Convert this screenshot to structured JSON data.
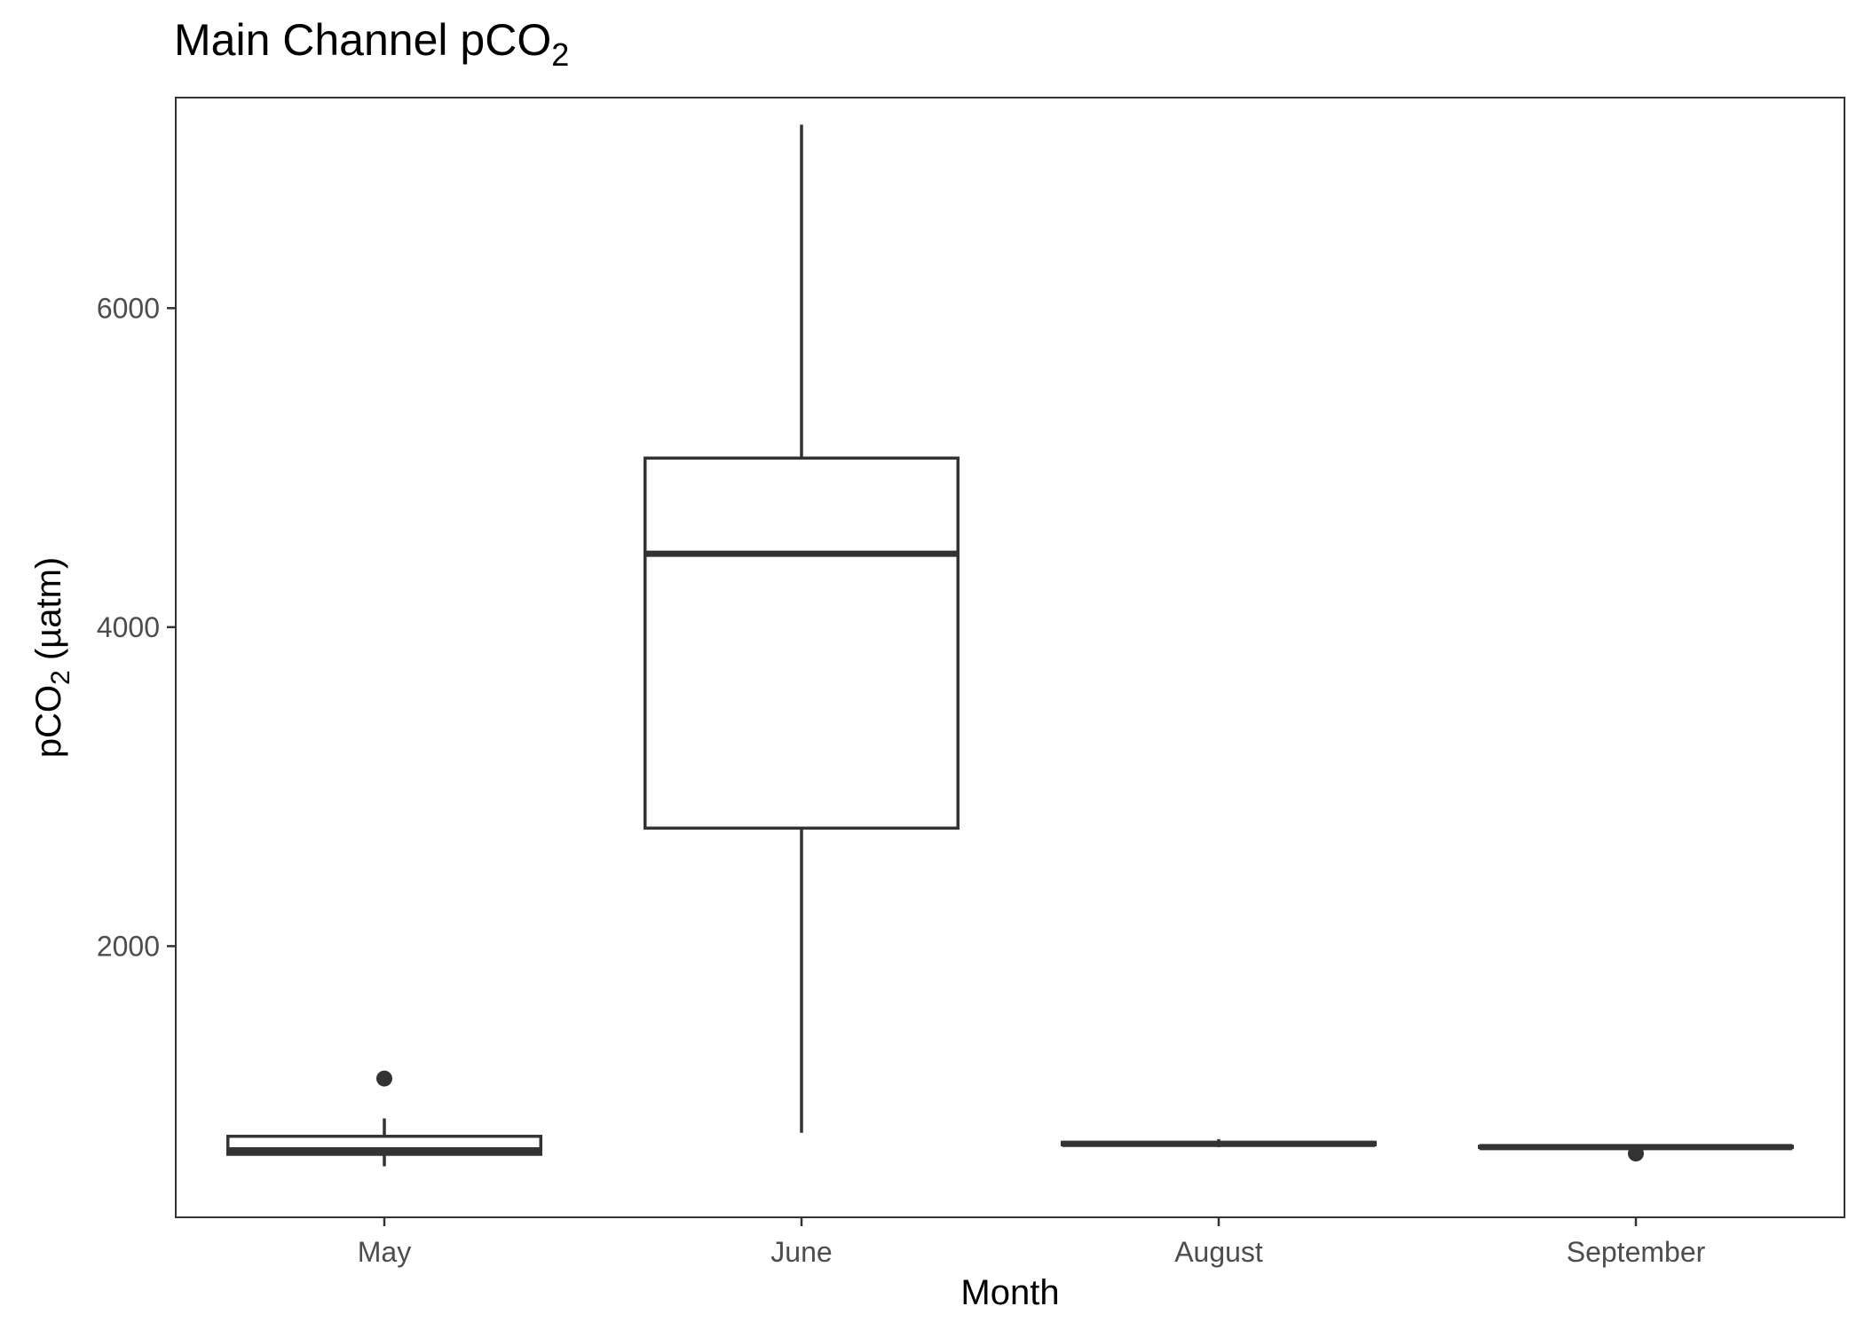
{
  "chart_data": {
    "type": "boxplot",
    "title": "Main Channel pCO",
    "title_sub": "2",
    "xlabel": "Month",
    "ylabel_prefix": "pCO",
    "ylabel_sub": "2",
    "ylabel_suffix": " (µatm)",
    "categories": [
      "May",
      "June",
      "August",
      "September"
    ],
    "yticks": [
      2000,
      4000,
      6000
    ],
    "ylim": [
      300,
      7320
    ],
    "boxes": [
      {
        "category": "May",
        "lower_whisker": 620,
        "q1": 695,
        "median": 720,
        "q3": 808,
        "upper_whisker": 920,
        "outliers": [
          1170
        ]
      },
      {
        "category": "June",
        "lower_whisker": 830,
        "q1": 2740,
        "median": 4460,
        "q3": 5060,
        "upper_whisker": 7150,
        "outliers": []
      },
      {
        "category": "August",
        "lower_whisker": 740,
        "q1": 755,
        "median": 760,
        "q3": 770,
        "upper_whisker": 790,
        "outliers": []
      },
      {
        "category": "September",
        "lower_whisker": 735,
        "q1": 738,
        "median": 740,
        "q3": 745,
        "upper_whisker": 750,
        "outliers": [
          700
        ]
      }
    ],
    "colors": {
      "line": "#333333",
      "box_fill": "#ffffff",
      "tick_text": "#4d4d4d"
    },
    "grid": false,
    "legend": "none"
  }
}
